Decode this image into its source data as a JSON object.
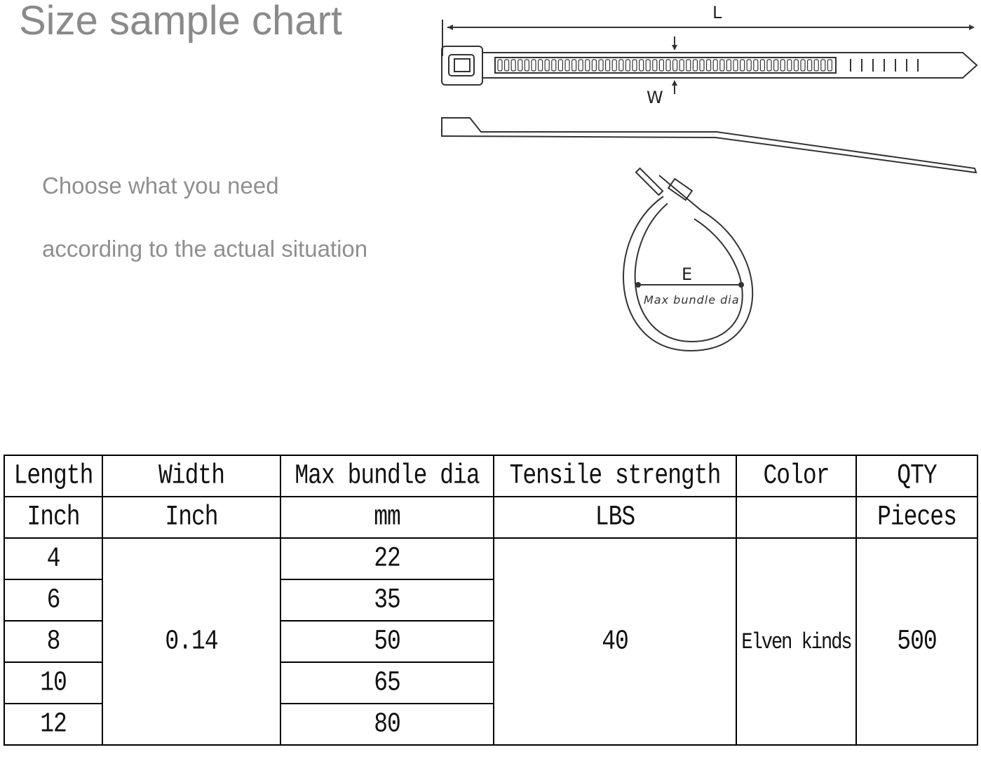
{
  "title": "Size sample chart",
  "subtitle_lines": [
    "Choose what you need",
    "according to the actual situation"
  ],
  "diagram": {
    "length_label": "L",
    "width_label": "W",
    "diameter_label": "E",
    "diameter_caption": "Max bundle dia"
  },
  "table": {
    "headers": [
      "Length",
      "Width",
      "Max bundle dia",
      "Tensile strength",
      "Color",
      "QTY"
    ],
    "units": [
      "Inch",
      "Inch",
      "mm",
      "LBS",
      "",
      "Pieces"
    ],
    "lengths": [
      "4",
      "6",
      "8",
      "10",
      "12"
    ],
    "width": "0.14",
    "max_bundle_dia": [
      "22",
      "35",
      "50",
      "65",
      "80"
    ],
    "tensile_strength": "40",
    "color": "Elven kinds",
    "qty": "500"
  }
}
